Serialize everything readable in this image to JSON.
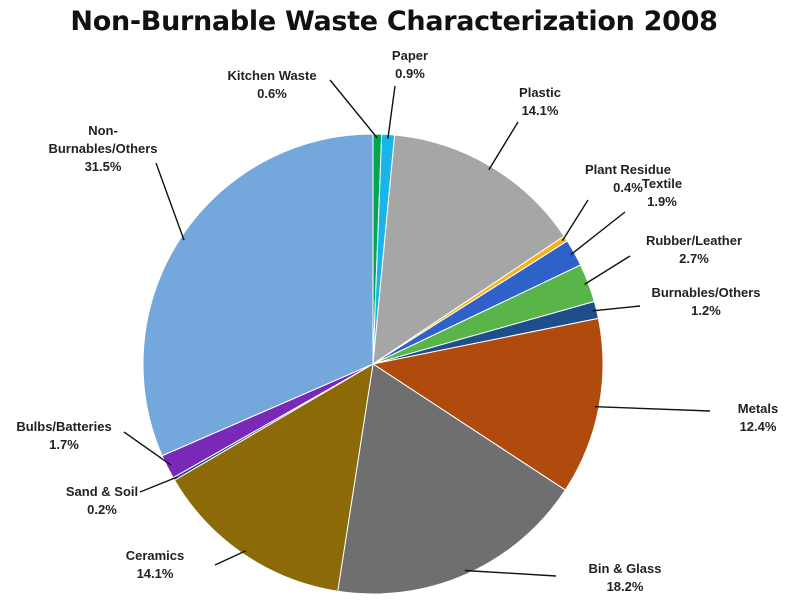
{
  "chart_data": {
    "type": "pie",
    "title": "Non-Burnable Waste Characterization 2008",
    "slices": [
      {
        "label": "Kitchen Waste",
        "label_lines": [
          "Kitchen Waste"
        ],
        "value": 0.6,
        "value_label": "0.6%",
        "color": "#00A650"
      },
      {
        "label": "Paper",
        "label_lines": [
          "Paper"
        ],
        "value": 0.9,
        "value_label": "0.9%",
        "color": "#19B5EA"
      },
      {
        "label": "Plastic",
        "label_lines": [
          "Plastic"
        ],
        "value": 14.1,
        "value_label": "14.1%",
        "color": "#A6A6A6"
      },
      {
        "label": "Plant Residue",
        "label_lines": [
          "Plant Residue"
        ],
        "value": 0.4,
        "value_label": "0.4%",
        "color": "#F6B21B"
      },
      {
        "label": "Textile",
        "label_lines": [
          "Textile"
        ],
        "value": 1.9,
        "value_label": "1.9%",
        "color": "#2F62C8"
      },
      {
        "label": "Rubber/Leather",
        "label_lines": [
          "Rubber/Leather"
        ],
        "value": 2.7,
        "value_label": "2.7%",
        "color": "#59B44A"
      },
      {
        "label": "Burnables/Others",
        "label_lines": [
          "Burnables/Others"
        ],
        "value": 1.2,
        "value_label": "1.2%",
        "color": "#1F4E8C"
      },
      {
        "label": "Metals",
        "label_lines": [
          "Metals"
        ],
        "value": 12.4,
        "value_label": "12.4%",
        "color": "#B04B0D"
      },
      {
        "label": "Bin & Glass",
        "label_lines": [
          "Bin & Glass"
        ],
        "value": 18.2,
        "value_label": "18.2%",
        "color": "#6F6F6F"
      },
      {
        "label": "Ceramics",
        "label_lines": [
          "Ceramics"
        ],
        "value": 14.1,
        "value_label": "14.1%",
        "color": "#8C6A08"
      },
      {
        "label": "Sand & Soil",
        "label_lines": [
          "Sand & Soil"
        ],
        "value": 0.2,
        "value_label": "0.2%",
        "color": "#264A8A"
      },
      {
        "label": "Bulbs/Batteries",
        "label_lines": [
          "Bulbs/Batteries"
        ],
        "value": 1.7,
        "value_label": "1.7%",
        "color": "#7A28B8"
      },
      {
        "label": "Non-Burnables/Others",
        "label_lines": [
          "Non-",
          "Burnables/Others"
        ],
        "value": 31.5,
        "value_label": "31.5%",
        "color": "#74A7DB"
      }
    ]
  }
}
